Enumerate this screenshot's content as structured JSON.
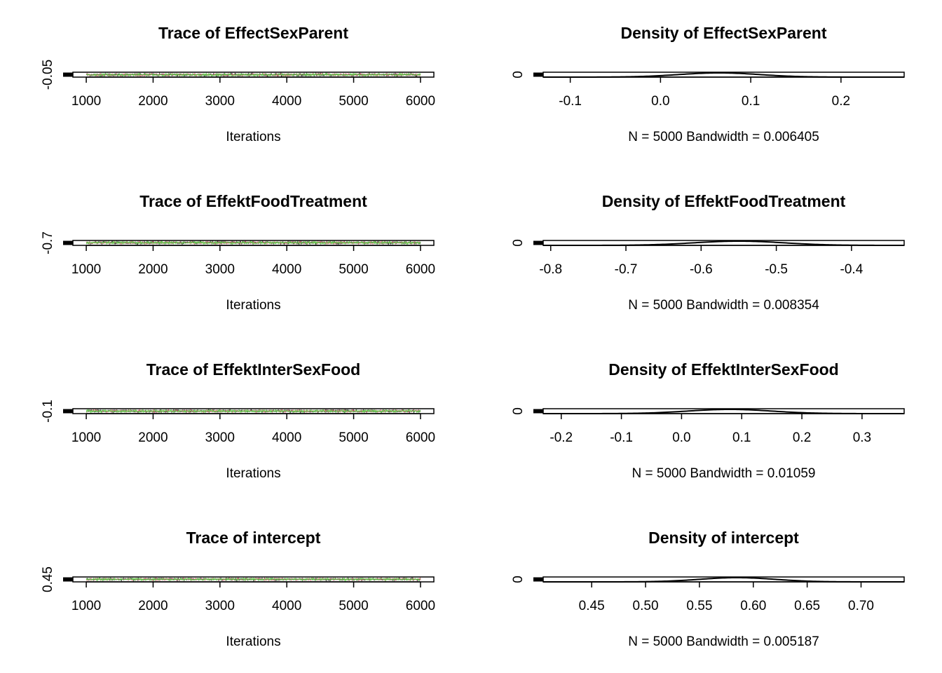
{
  "chart_data": [
    {
      "type": "line",
      "title": "Trace of EffectSexParent",
      "xlabel": "Iterations",
      "ylabel": "",
      "xlim": [
        800,
        6200
      ],
      "xticks": [
        "1000",
        "2000",
        "3000",
        "4000",
        "5000",
        "6000"
      ],
      "ylim": [
        -0.12,
        0.26
      ],
      "yticks": [
        "-0.05"
      ],
      "x_range": [
        1001,
        6000
      ],
      "series": [
        {
          "color": "#000000",
          "center": 0.065,
          "spread": 0.045
        },
        {
          "color": "#df536b",
          "center": 0.065,
          "spread": 0.045
        },
        {
          "color": "#61d04f",
          "center": 0.065,
          "spread": 0.045
        }
      ]
    },
    {
      "type": "line",
      "title": "Density of EffectSexParent",
      "xlabel": "N = 5000   Bandwidth = 0.006405",
      "ylabel": "",
      "xlim": [
        -0.13,
        0.27
      ],
      "xticks": [
        "-0.1",
        "0.0",
        "0.1",
        "0.2"
      ],
      "yticks": [
        "0"
      ],
      "density": {
        "mean": 0.065,
        "sd": 0.045
      }
    },
    {
      "type": "line",
      "title": "Trace of EffektFoodTreatment",
      "xlabel": "Iterations",
      "ylabel": "",
      "xlim": [
        800,
        6200
      ],
      "xticks": [
        "1000",
        "2000",
        "3000",
        "4000",
        "5000",
        "6000"
      ],
      "ylim": [
        -0.82,
        -0.33
      ],
      "yticks": [
        "-0.7"
      ],
      "x_range": [
        1001,
        6000
      ],
      "series": [
        {
          "color": "#000000",
          "center": -0.55,
          "spread": 0.06
        },
        {
          "color": "#df536b",
          "center": -0.55,
          "spread": 0.06
        },
        {
          "color": "#61d04f",
          "center": -0.55,
          "spread": 0.06
        }
      ]
    },
    {
      "type": "line",
      "title": "Density of EffektFoodTreatment",
      "xlabel": "N = 5000   Bandwidth = 0.008354",
      "ylabel": "",
      "xlim": [
        -0.81,
        -0.33
      ],
      "xticks": [
        "-0.8",
        "-0.7",
        "-0.6",
        "-0.5",
        "-0.4"
      ],
      "yticks": [
        "0"
      ],
      "density": {
        "mean": -0.55,
        "sd": 0.06
      }
    },
    {
      "type": "line",
      "title": "Trace of EffektInterSexFood",
      "xlabel": "Iterations",
      "ylabel": "",
      "xlim": [
        800,
        6200
      ],
      "xticks": [
        "1000",
        "2000",
        "3000",
        "4000",
        "5000",
        "6000"
      ],
      "ylim": [
        -0.22,
        0.36
      ],
      "yticks": [
        "-0.1"
      ],
      "x_range": [
        1001,
        6000
      ],
      "series": [
        {
          "color": "#000000",
          "center": 0.08,
          "spread": 0.07
        },
        {
          "color": "#df536b",
          "center": 0.08,
          "spread": 0.07
        },
        {
          "color": "#61d04f",
          "center": 0.08,
          "spread": 0.07
        }
      ]
    },
    {
      "type": "line",
      "title": "Density of EffektInterSexFood",
      "xlabel": "N = 5000   Bandwidth = 0.01059",
      "ylabel": "",
      "xlim": [
        -0.23,
        0.37
      ],
      "xticks": [
        "-0.2",
        "-0.1",
        "0.0",
        "0.1",
        "0.2",
        "0.3"
      ],
      "yticks": [
        "0"
      ],
      "density": {
        "mean": 0.08,
        "sd": 0.07
      }
    },
    {
      "type": "line",
      "title": "Trace of intercept",
      "xlabel": "Iterations",
      "ylabel": "",
      "xlim": [
        800,
        6200
      ],
      "xticks": [
        "1000",
        "2000",
        "3000",
        "4000",
        "5000",
        "6000"
      ],
      "ylim": [
        0.41,
        0.74
      ],
      "yticks": [
        "0.45"
      ],
      "x_range": [
        1001,
        6000
      ],
      "series": [
        {
          "color": "#000000",
          "center": 0.585,
          "spread": 0.035
        },
        {
          "color": "#df536b",
          "center": 0.585,
          "spread": 0.035
        },
        {
          "color": "#61d04f",
          "center": 0.585,
          "spread": 0.035
        }
      ]
    },
    {
      "type": "line",
      "title": "Density of intercept",
      "xlabel": "N = 5000   Bandwidth = 0.005187",
      "ylabel": "",
      "xlim": [
        0.405,
        0.74
      ],
      "xticks": [
        "0.45",
        "0.50",
        "0.55",
        "0.60",
        "0.65",
        "0.70"
      ],
      "yticks": [
        "0"
      ],
      "density": {
        "mean": 0.585,
        "sd": 0.035
      }
    }
  ]
}
